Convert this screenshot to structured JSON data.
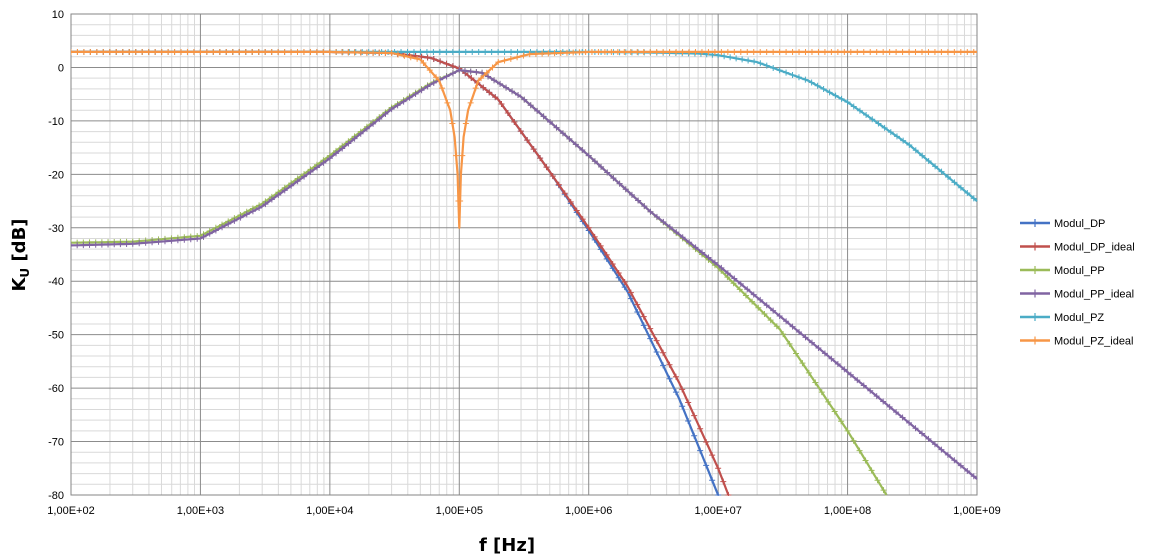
{
  "chart_data": {
    "type": "line",
    "title": "",
    "xlabel": "f [Hz]",
    "ylabel_main": "K",
    "ylabel_sub": "U",
    "ylabel_rest": " [dB]",
    "x_scale": "log",
    "xlim": [
      100,
      1000000000
    ],
    "ylim": [
      -80,
      10
    ],
    "grid": true,
    "legend_position": "right",
    "x_tick_labels": [
      "1,00E+02",
      "1,00E+03",
      "1,00E+04",
      "1,00E+05",
      "1,00E+06",
      "1,00E+07",
      "1,00E+08",
      "1,00E+09"
    ],
    "x_ticks": [
      100,
      1000,
      10000,
      100000,
      1000000,
      10000000,
      100000000,
      1000000000
    ],
    "y_ticks": [
      10,
      0,
      -10,
      -20,
      -30,
      -40,
      -50,
      -60,
      -70,
      -80
    ],
    "y_tick_labels": [
      "10",
      "0",
      "-10",
      "-20",
      "-30",
      "-40",
      "-50",
      "-60",
      "-70",
      "-80"
    ],
    "series": [
      {
        "name": "Modul_DP",
        "color": "#4472c4",
        "x": [
          100,
          1000,
          10000,
          30000,
          60000,
          100000,
          200000,
          500000,
          1000000,
          2000000,
          5000000,
          10000000
        ],
        "y": [
          2.9,
          2.9,
          2.9,
          2.7,
          1.8,
          -0.2,
          -6.0,
          -19.5,
          -30.5,
          -42.0,
          -62.0,
          -80.0
        ]
      },
      {
        "name": "Modul_DP_ideal",
        "color": "#c0504d",
        "x": [
          100,
          1000,
          10000,
          30000,
          60000,
          100000,
          200000,
          500000,
          1000000,
          2000000,
          5000000,
          10000000,
          12000000
        ],
        "y": [
          2.9,
          2.9,
          2.9,
          2.7,
          1.8,
          -0.2,
          -6.0,
          -19.5,
          -30.0,
          -41.0,
          -59.0,
          -75.0,
          -80.0
        ]
      },
      {
        "name": "Modul_PP",
        "color": "#9bbb59",
        "x": [
          100,
          300,
          1000,
          3000,
          10000,
          30000,
          60000,
          100000,
          150000,
          300000,
          1000000,
          3000000,
          10000000,
          30000000,
          100000000,
          200000000
        ],
        "y": [
          -32.8,
          -32.6,
          -31.5,
          -25.5,
          -16.5,
          -7.5,
          -3.0,
          -0.5,
          -1.0,
          -5.5,
          -16.5,
          -27.0,
          -37.5,
          -49.0,
          -68.0,
          -80.0
        ]
      },
      {
        "name": "Modul_PP_ideal",
        "color": "#8064a2",
        "x": [
          100,
          300,
          1000,
          3000,
          10000,
          30000,
          60000,
          100000,
          150000,
          300000,
          1000000,
          3000000,
          10000000,
          100000000,
          1000000000
        ],
        "y": [
          -33.3,
          -33.0,
          -32.0,
          -26.0,
          -17.0,
          -7.8,
          -3.2,
          -0.5,
          -1.0,
          -5.5,
          -16.5,
          -27.0,
          -37.0,
          -57.0,
          -77.0
        ]
      },
      {
        "name": "Modul_PZ",
        "color": "#4bacc6",
        "x": [
          100,
          1000,
          10000,
          1000000,
          3000000,
          7000000,
          10000000,
          20000000,
          50000000,
          100000000,
          300000000,
          1000000000
        ],
        "y": [
          2.9,
          2.9,
          2.9,
          2.9,
          2.8,
          2.6,
          2.3,
          1.0,
          -2.5,
          -6.5,
          -14.5,
          -25.0
        ]
      },
      {
        "name": "Modul_PZ_ideal",
        "color": "#f79646",
        "x": [
          100,
          10000,
          30000,
          50000,
          70000,
          85000,
          92000,
          97000,
          100000,
          103000,
          108000,
          117000,
          140000,
          200000,
          350000,
          1000000,
          10000000,
          1000000000
        ],
        "y": [
          2.9,
          2.9,
          2.7,
          1.5,
          -2.5,
          -8.0,
          -13.0,
          -20.0,
          -30.0,
          -20.0,
          -13.0,
          -8.0,
          -2.5,
          1.0,
          2.5,
          2.9,
          2.9,
          2.9
        ]
      }
    ]
  }
}
